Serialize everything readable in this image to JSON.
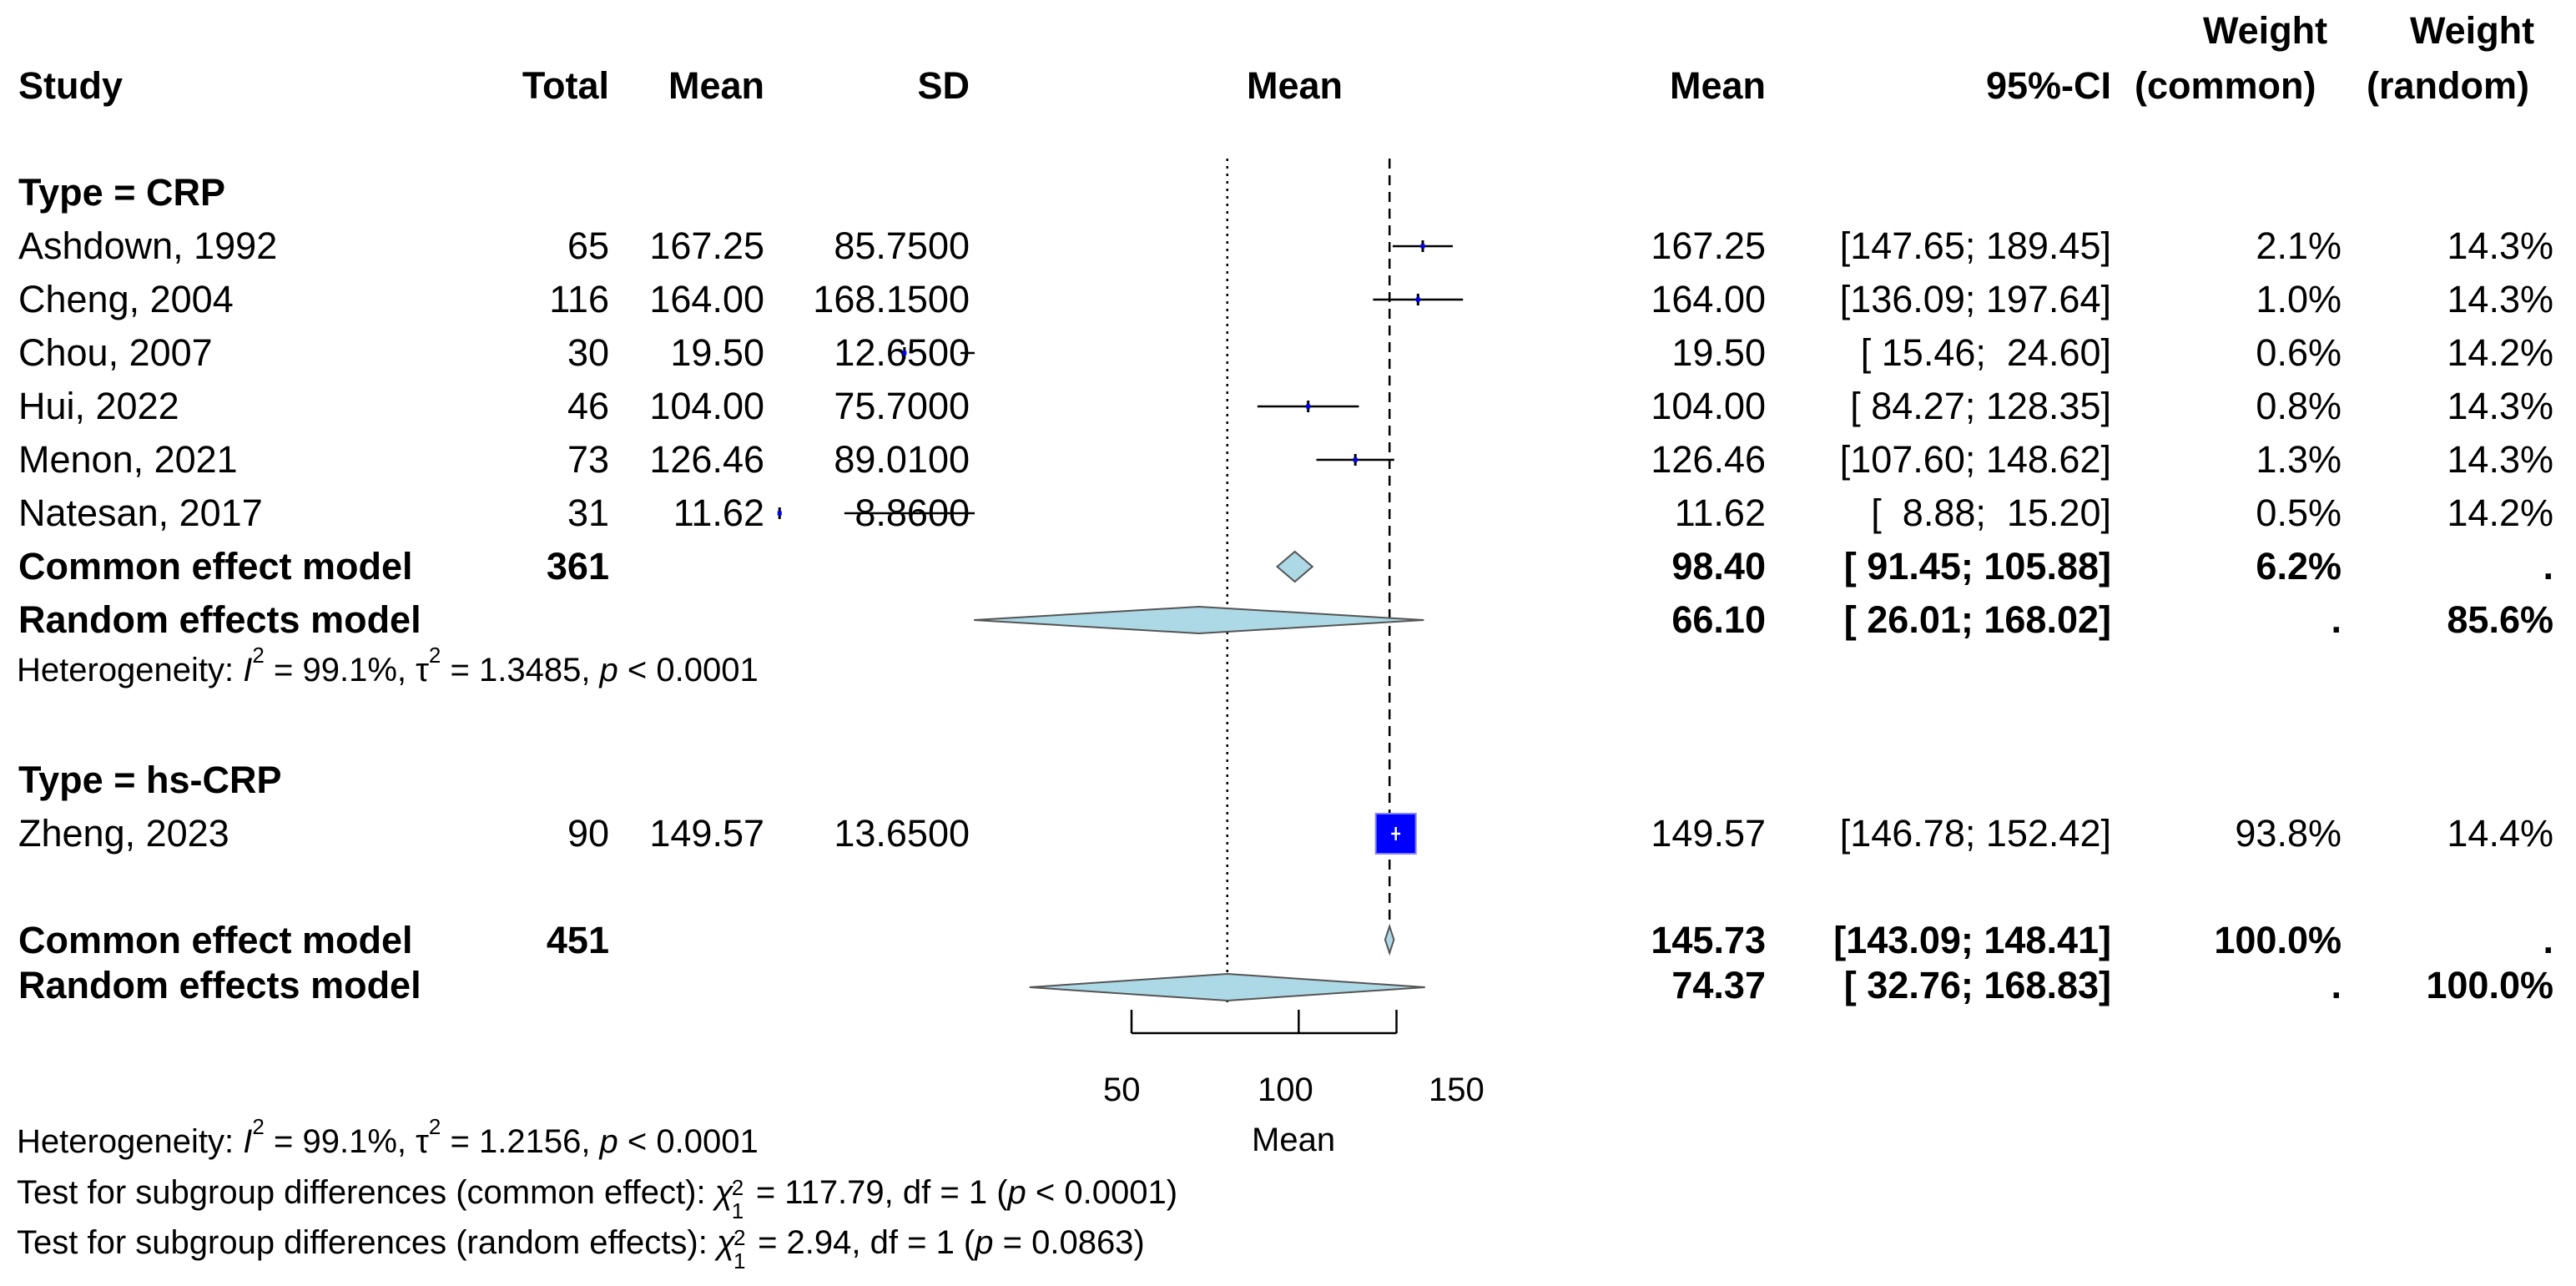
{
  "headers": {
    "study": "Study",
    "total": "Total",
    "mean": "Mean",
    "sd": "SD",
    "plot": "Mean",
    "est": "Mean",
    "ci": "95%-CI",
    "wc_top": "Weight",
    "wc_bot": "(common)",
    "wr_top": "Weight",
    "wr_bot": "(random)"
  },
  "groups": [
    {
      "label": "Type = CRP",
      "studies": [
        {
          "study": "Ashdown, 1992",
          "total": "65",
          "mean": "167.25",
          "sd": "85.7500",
          "est": "167.25",
          "ci": "[147.65; 189.45]",
          "wc": "2.1%",
          "wr": "14.3%"
        },
        {
          "study": "Cheng, 2004",
          "total": "116",
          "mean": "164.00",
          "sd": "168.1500",
          "est": "164.00",
          "ci": "[136.09; 197.64]",
          "wc": "1.0%",
          "wr": "14.3%"
        },
        {
          "study": "Chou, 2007",
          "total": "30",
          "mean": "19.50",
          "sd": "12.6500",
          "est": "19.50",
          "ci": "[ 15.46;  24.60]",
          "wc": "0.6%",
          "wr": "14.2%"
        },
        {
          "study": "Hui, 2022",
          "total": "46",
          "mean": "104.00",
          "sd": "75.7000",
          "est": "104.00",
          "ci": "[ 84.27; 128.35]",
          "wc": "0.8%",
          "wr": "14.3%"
        },
        {
          "study": "Menon, 2021",
          "total": "73",
          "mean": "126.46",
          "sd": "89.0100",
          "est": "126.46",
          "ci": "[107.60; 148.62]",
          "wc": "1.3%",
          "wr": "14.3%"
        },
        {
          "study": "Natesan, 2017",
          "total": "31",
          "mean": "11.62",
          "sd": "8.8600",
          "est": "11.62",
          "ci": "[  8.88;  15.20]",
          "wc": "0.5%",
          "wr": "14.2%"
        }
      ],
      "common": {
        "label": "Common effect model",
        "total": "361",
        "est": "98.40",
        "ci": "[ 91.45; 105.88]",
        "wc": "6.2%",
        "wr": "."
      },
      "random": {
        "label": "Random effects model",
        "est": "66.10",
        "ci": "[ 26.01; 168.02]",
        "wc": ".",
        "wr": "85.6%"
      },
      "het": {
        "prefix": "Heterogeneity: ",
        "I": "I",
        "i2": " = 99.1%, ",
        "tau": "τ",
        "t2": " = 1.3485, ",
        "p": "p",
        "pv": " < 0.0001"
      }
    },
    {
      "label": "Type = hs-CRP",
      "studies": [
        {
          "study": "Zheng, 2023",
          "total": "90",
          "mean": "149.57",
          "sd": "13.6500",
          "est": "149.57",
          "ci": "[146.78; 152.42]",
          "wc": "93.8%",
          "wr": "14.4%"
        }
      ]
    }
  ],
  "overall": {
    "common": {
      "label": "Common effect model",
      "total": "451",
      "est": "145.73",
      "ci": "[143.09; 148.41]",
      "wc": "100.0%",
      "wr": "."
    },
    "random": {
      "label": "Random effects model",
      "est": "74.37",
      "ci": "[ 32.76; 168.83]",
      "wc": ".",
      "wr": "100.0%"
    }
  },
  "footer": {
    "het": {
      "prefix": "Heterogeneity: ",
      "I": "I",
      "i2": " = 99.1%, ",
      "tau": "τ",
      "t2": " = 1.2156, ",
      "p": "p",
      "pv": " < 0.0001"
    },
    "test_common": {
      "prefix": "Test for subgroup differences (common effect): ",
      "chi": "χ",
      "sup": "2",
      "sub": "1",
      "rest1": " = 117.79, df = 1 (",
      "p": "p",
      "rest2": " < 0.0001)"
    },
    "test_random": {
      "prefix": "Test for subgroup differences (random effects): ",
      "chi": "χ",
      "sup": "2",
      "sub": "1",
      "rest1": " = 2.94, df = 1 (",
      "p": "p",
      "rest2": " = 0.0863)"
    }
  },
  "chart_data": {
    "type": "forest",
    "xlabel": "Mean",
    "scale": "log",
    "ticks": [
      50,
      100,
      150
    ],
    "tick_labels": [
      "50",
      "100",
      "150"
    ],
    "ref_line_dotted": 74.37,
    "ref_line_dashed": 145.73,
    "studies": [
      {
        "name": "Ashdown, 1992",
        "est": 167.25,
        "lo": 147.65,
        "hi": 189.45,
        "weight_common": 2.1
      },
      {
        "name": "Cheng, 2004",
        "est": 164.0,
        "lo": 136.09,
        "hi": 197.64,
        "weight_common": 1.0
      },
      {
        "name": "Chou, 2007",
        "est": 19.5,
        "lo": 15.46,
        "hi": 24.6,
        "weight_common": 0.6
      },
      {
        "name": "Hui, 2022",
        "est": 104.0,
        "lo": 84.27,
        "hi": 128.35,
        "weight_common": 0.8
      },
      {
        "name": "Menon, 2021",
        "est": 126.46,
        "lo": 107.6,
        "hi": 148.62,
        "weight_common": 1.3
      },
      {
        "name": "Natesan, 2017",
        "est": 11.62,
        "lo": 8.88,
        "hi": 15.2,
        "weight_common": 0.5
      },
      {
        "name": "Zheng, 2023",
        "est": 149.57,
        "lo": 146.78,
        "hi": 152.42,
        "weight_common": 93.8
      }
    ],
    "pooled": [
      {
        "name": "CRP common",
        "est": 98.4,
        "lo": 91.45,
        "hi": 105.88
      },
      {
        "name": "CRP random",
        "est": 66.1,
        "lo": 26.01,
        "hi": 168.02
      },
      {
        "name": "Overall common",
        "est": 145.73,
        "lo": 143.09,
        "hi": 148.41
      },
      {
        "name": "Overall random",
        "est": 74.37,
        "lo": 32.76,
        "hi": 168.83
      }
    ],
    "colors": {
      "diamond_fill": "#add8e6",
      "big_square": "#0000ff",
      "line": "#000000"
    }
  }
}
